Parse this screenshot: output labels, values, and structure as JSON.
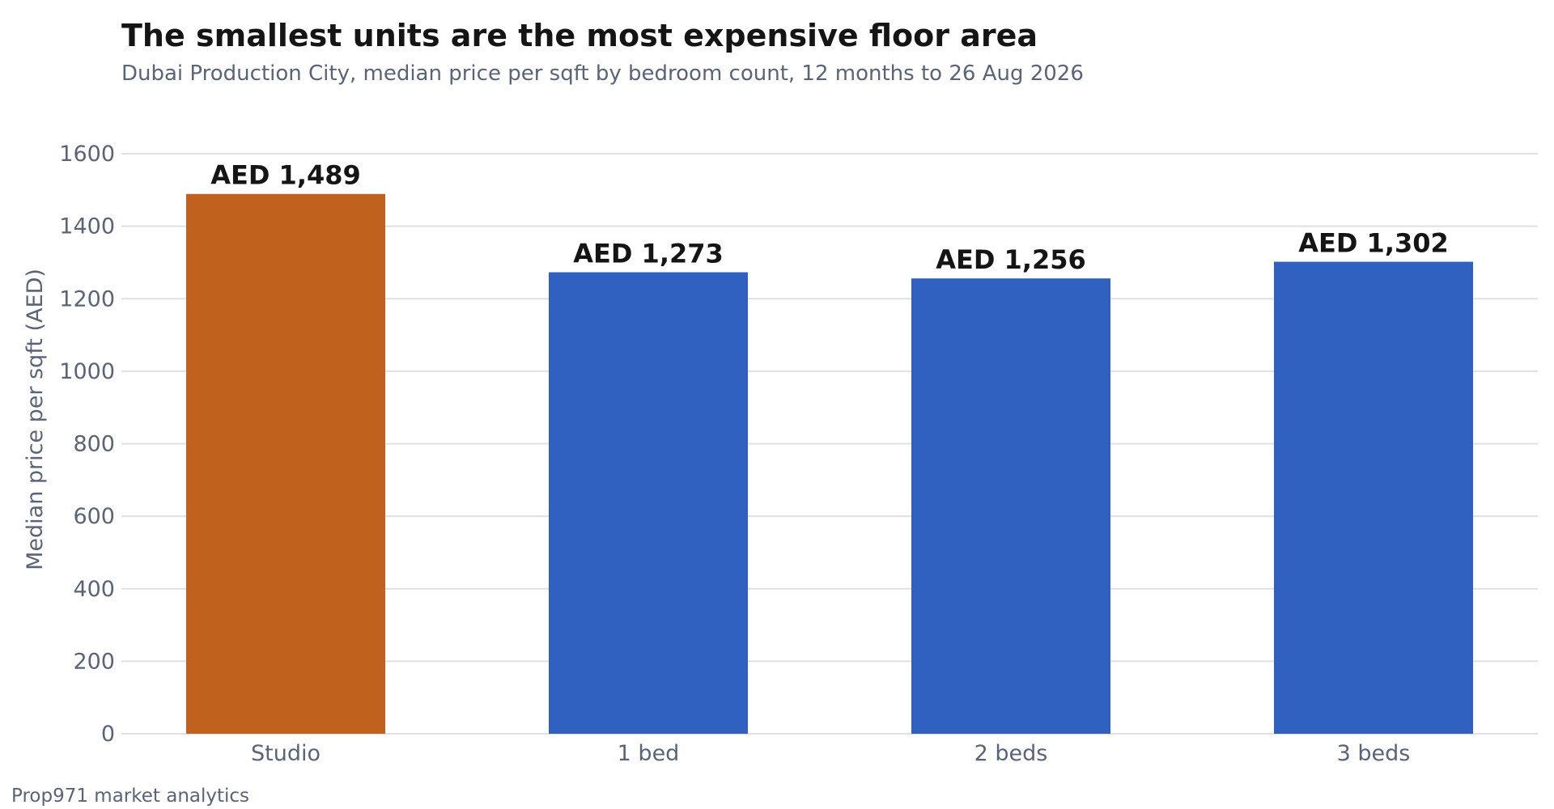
{
  "header": {
    "title": "The smallest units are the most expensive floor area",
    "subtitle": "Dubai Production City, median price per sqft by bedroom count, 12 months to 26 Aug 2026"
  },
  "footer": {
    "source": "Prop971 market analytics"
  },
  "colors": {
    "highlight": "#c0611e",
    "default": "#3060c0",
    "grid": "#e0e0e0",
    "axis_text": "#5a6478",
    "value_label": "#151515"
  },
  "chart_data": {
    "type": "bar",
    "categories": [
      "Studio",
      "1 bed",
      "2 beds",
      "3 beds"
    ],
    "values": [
      1489,
      1273,
      1256,
      1302
    ],
    "value_labels": [
      "AED 1,489",
      "AED 1,273",
      "AED 1,256",
      "AED 1,302"
    ],
    "highlight_category": "Studio",
    "ylabel": "Median price per sqft (AED)",
    "xlabel": "",
    "ylim": [
      0,
      1600
    ],
    "yticks": [
      0,
      200,
      400,
      600,
      800,
      1000,
      1200,
      1400,
      1600
    ],
    "grid": true,
    "legend": "none"
  }
}
